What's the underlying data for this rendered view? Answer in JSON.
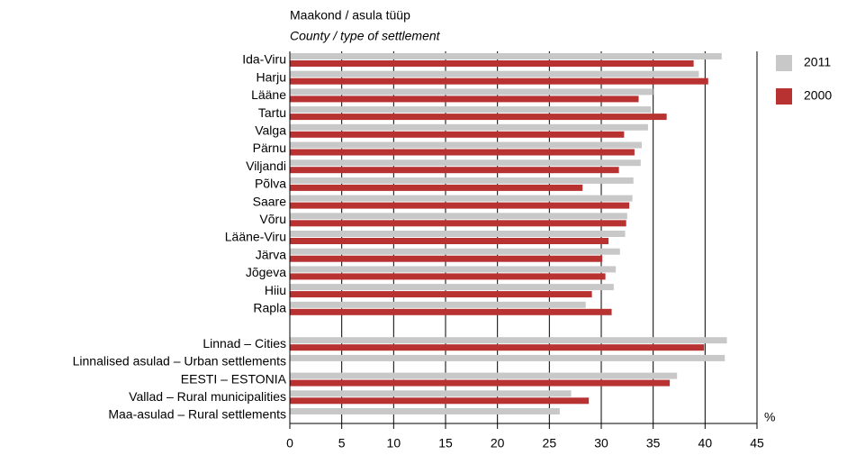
{
  "chart_data": {
    "type": "hbar",
    "title": "Maakond / asula tüüp",
    "subtitle": "County / type of settlement",
    "x_unit": "%",
    "categories": [
      "Ida-Viru",
      "Harju",
      "Lääne",
      "Tartu",
      "Valga",
      "Pärnu",
      "Viljandi",
      "Põlva",
      "Saare",
      "Võru",
      "Lääne-Viru",
      "Järva",
      "Jõgeva",
      "Hiiu",
      "Rapla",
      null,
      "Linnad – Cities",
      "Linnalised asulad – Urban settlements",
      "EESTI – ESTONIA",
      "Vallad – Rural municipalities",
      "Maa-asulad – Rural settlements"
    ],
    "series": [
      {
        "name": "2011",
        "color": "#c8c8c8",
        "values": [
          41.6,
          39.4,
          35.0,
          34.8,
          34.5,
          33.9,
          33.8,
          33.1,
          33.0,
          32.5,
          32.3,
          31.8,
          31.4,
          31.2,
          28.5,
          null,
          42.1,
          41.9,
          37.3,
          27.1,
          26.0
        ]
      },
      {
        "name": "2000",
        "color": "#b83232",
        "values": [
          38.9,
          40.3,
          33.6,
          36.3,
          32.2,
          33.2,
          31.7,
          28.2,
          32.7,
          32.4,
          30.7,
          30.1,
          30.4,
          29.1,
          31.0,
          null,
          39.9,
          null,
          36.6,
          28.8,
          null
        ]
      }
    ],
    "xlim": [
      0,
      45
    ],
    "xticks": [
      0,
      5,
      10,
      15,
      20,
      25,
      30,
      35,
      40,
      45
    ],
    "grid": true
  }
}
